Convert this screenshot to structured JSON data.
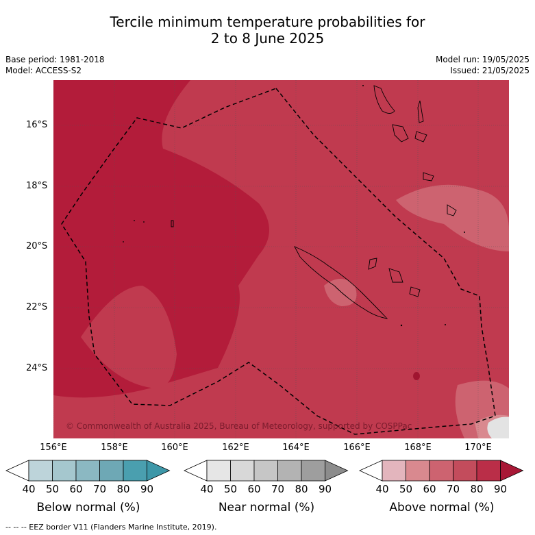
{
  "header": {
    "title_line1": "Tercile minimum temperature probabilities for",
    "title_line2": "2 to 8 June 2025",
    "base_period": "Base period: 1981-2018",
    "model": "Model: ACCESS-S2",
    "model_run": "Model run: 19/05/2025",
    "issued": "Issued: 21/05/2025"
  },
  "map": {
    "lat_labels": [
      "16°S",
      "18°S",
      "20°S",
      "22°S",
      "24°S"
    ],
    "lon_labels": [
      "156°E",
      "158°E",
      "160°E",
      "162°E",
      "164°E",
      "166°E",
      "168°E",
      "170°E"
    ],
    "copyright": "© Commonwealth of Australia 2025, Bureau of Meteorology, supported by COSPPac",
    "colors": {
      "above_90": "#b31c3a",
      "above_80": "#c03a4f",
      "above_70": "#cd6370",
      "above_60": "#d9898f",
      "near_low": "#e3e3e3"
    }
  },
  "colorbars": [
    {
      "title": "Below normal (%)",
      "ticks": [
        "40",
        "50",
        "60",
        "70",
        "80",
        "90"
      ],
      "colors": [
        "#ffffff",
        "#bdd4da",
        "#a5c7ce",
        "#8bb8c2",
        "#6ea8b5",
        "#4a9faf",
        "#3d97a8"
      ]
    },
    {
      "title": "Near normal (%)",
      "ticks": [
        "40",
        "50",
        "60",
        "70",
        "80",
        "90"
      ],
      "colors": [
        "#ffffff",
        "#e6e6e6",
        "#d8d8d8",
        "#c6c6c6",
        "#b3b3b3",
        "#9e9e9e",
        "#8c8c8c"
      ]
    },
    {
      "title": "Above normal (%)",
      "ticks": [
        "40",
        "50",
        "60",
        "70",
        "80",
        "90"
      ],
      "colors": [
        "#ffffff",
        "#e3b5bd",
        "#d9898f",
        "#cd6370",
        "#c34c5c",
        "#ba2e48",
        "#a81836"
      ]
    }
  ],
  "footnote": "--  --  -- EEZ border V11 (Flanders Marine Institute, 2019)."
}
